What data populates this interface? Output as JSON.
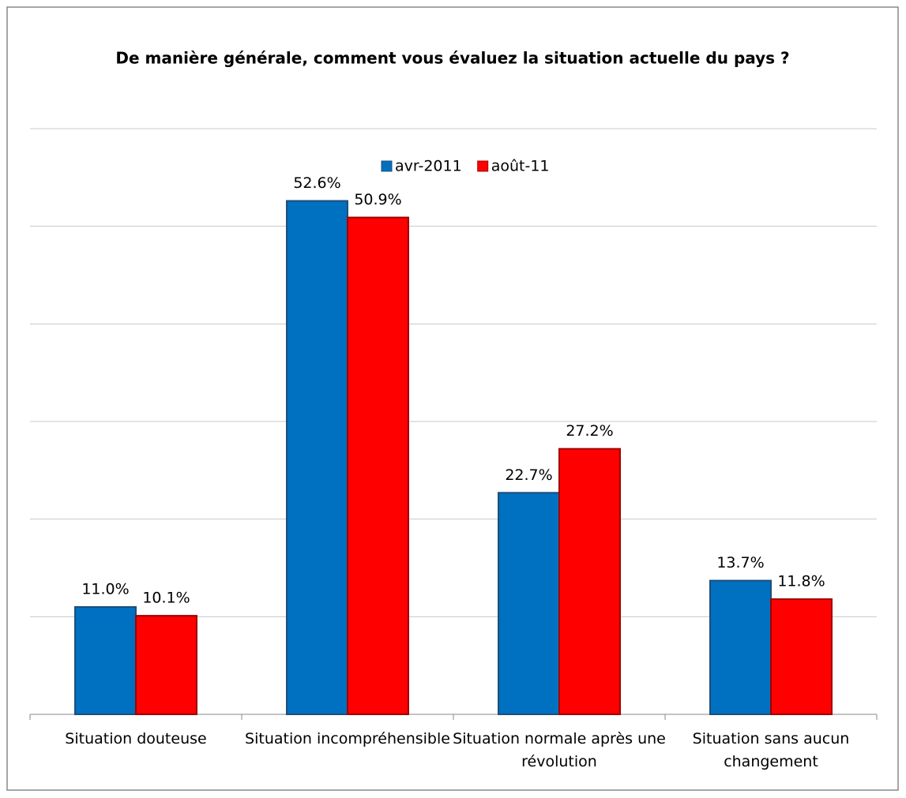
{
  "chart_data": {
    "type": "bar",
    "title": "De manière générale, comment vous évaluez la situation actuelle du pays ?",
    "categories": [
      "Situation douteuse",
      "Situation incompréhensible",
      "Situation normale après une révolution",
      "Situation sans aucun changement"
    ],
    "series": [
      {
        "name": "avr-2011",
        "color": "#0070c0",
        "values": [
          11.0,
          52.6,
          22.7,
          13.7
        ],
        "value_labels": [
          "11.0%",
          "52.6%",
          "22.7%",
          "13.7%"
        ]
      },
      {
        "name": "août-11",
        "color": "#ff0000",
        "values": [
          10.1,
          50.9,
          27.2,
          11.8
        ],
        "value_labels": [
          "10.1%",
          "50.9%",
          "27.2%",
          "11.8%"
        ]
      }
    ],
    "ylim": [
      0,
      60
    ],
    "yticks": [
      0,
      10,
      20,
      30,
      40,
      50,
      60
    ],
    "grid": true,
    "legend": "top"
  }
}
